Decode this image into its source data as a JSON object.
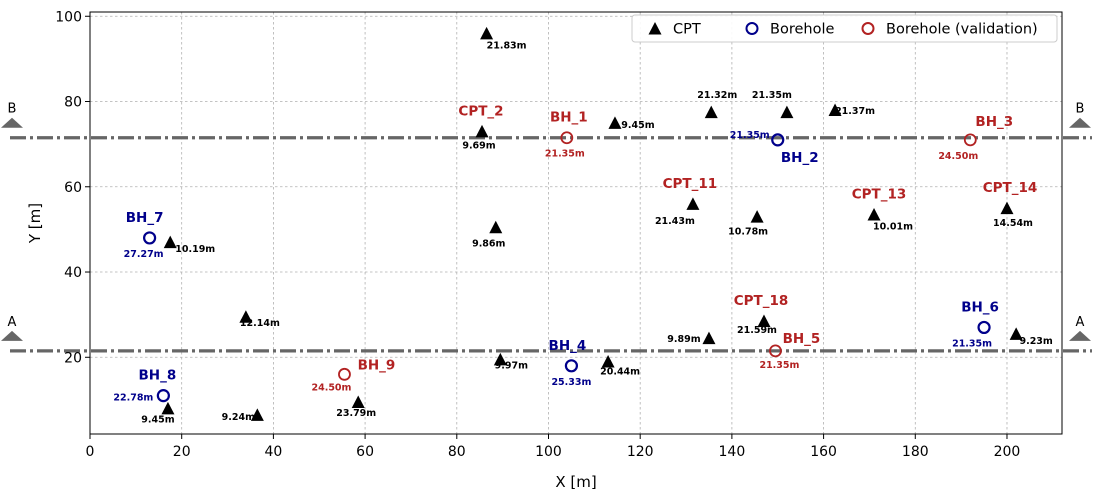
{
  "chart_data": {
    "type": "scatter",
    "xlabel": "X [m]",
    "ylabel": "Y [m]",
    "xlim": [
      0,
      212
    ],
    "ylim": [
      2,
      101
    ],
    "xticks": [
      0,
      20,
      40,
      60,
      80,
      100,
      120,
      140,
      160,
      180,
      200
    ],
    "yticks": [
      20,
      40,
      60,
      80,
      100
    ],
    "grid": true,
    "legend_position": "top-right",
    "colors": {
      "cpt": "#000000",
      "borehole": "#00008b",
      "validation": "#b22222",
      "section_line": "#666666"
    },
    "legend": [
      {
        "label": "CPT",
        "marker": "triangle",
        "color": "#000000"
      },
      {
        "label": "Borehole",
        "marker": "circle",
        "color": "#00008b"
      },
      {
        "label": "Borehole (validation)",
        "marker": "circle",
        "color": "#b22222"
      }
    ],
    "sections": [
      {
        "label": "A",
        "y": 21.5
      },
      {
        "label": "B",
        "y": 71.5
      }
    ],
    "cpt": [
      {
        "x": 86.5,
        "y": 96.0,
        "depth": "21.83m",
        "name": ""
      },
      {
        "x": 85.5,
        "y": 73.0,
        "depth": "9.69m",
        "name": "CPT_2"
      },
      {
        "x": 114.5,
        "y": 75.0,
        "depth": "9.45m",
        "name": ""
      },
      {
        "x": 135.5,
        "y": 77.5,
        "depth": "21.32m",
        "name": ""
      },
      {
        "x": 152.0,
        "y": 77.5,
        "depth": "21.35m",
        "name": ""
      },
      {
        "x": 162.5,
        "y": 78.0,
        "depth": "21.37m",
        "name": ""
      },
      {
        "x": 131.5,
        "y": 56.0,
        "depth": "21.43m",
        "name": "CPT_11"
      },
      {
        "x": 145.5,
        "y": 53.0,
        "depth": "10.78m",
        "name": ""
      },
      {
        "x": 171.0,
        "y": 53.5,
        "depth": "10.01m",
        "name": "CPT_13"
      },
      {
        "x": 200.0,
        "y": 55.0,
        "depth": "14.54m",
        "name": "CPT_14"
      },
      {
        "x": 88.5,
        "y": 50.5,
        "depth": "9.86m",
        "name": ""
      },
      {
        "x": 17.5,
        "y": 47.0,
        "depth": "10.19m",
        "name": ""
      },
      {
        "x": 34.0,
        "y": 29.5,
        "depth": "12.14m",
        "name": ""
      },
      {
        "x": 147.0,
        "y": 28.5,
        "depth": "21.59m",
        "name": "CPT_18"
      },
      {
        "x": 135.0,
        "y": 24.5,
        "depth": "9.89m",
        "name": ""
      },
      {
        "x": 202.0,
        "y": 25.5,
        "depth": "9.23m",
        "name": ""
      },
      {
        "x": 89.5,
        "y": 19.5,
        "depth": "9.97m",
        "name": ""
      },
      {
        "x": 113.0,
        "y": 19.0,
        "depth": "20.44m",
        "name": ""
      },
      {
        "x": 58.5,
        "y": 9.5,
        "depth": "23.79m",
        "name": ""
      },
      {
        "x": 36.5,
        "y": 6.5,
        "depth": "9.24m",
        "name": ""
      },
      {
        "x": 17.0,
        "y": 8.0,
        "depth": "9.45m",
        "name": ""
      }
    ],
    "boreholes": [
      {
        "x": 150.0,
        "y": 71.0,
        "depth": "21.35m",
        "name": "BH_2"
      },
      {
        "x": 13.0,
        "y": 48.0,
        "depth": "27.27m",
        "name": "BH_7"
      },
      {
        "x": 195.0,
        "y": 27.0,
        "depth": "21.35m",
        "name": "BH_6"
      },
      {
        "x": 105.0,
        "y": 18.0,
        "depth": "25.33m",
        "name": "BH_4"
      },
      {
        "x": 16.0,
        "y": 11.0,
        "depth": "22.78m",
        "name": "BH_8"
      }
    ],
    "validation": [
      {
        "x": 104.0,
        "y": 71.5,
        "depth": "21.35m",
        "name": "BH_1"
      },
      {
        "x": 192.0,
        "y": 71.0,
        "depth": "24.50m",
        "name": "BH_3"
      },
      {
        "x": 149.5,
        "y": 21.5,
        "depth": "21.35m",
        "name": "BH_5"
      },
      {
        "x": 55.5,
        "y": 16.0,
        "depth": "24.50m",
        "name": "BH_9"
      }
    ]
  }
}
